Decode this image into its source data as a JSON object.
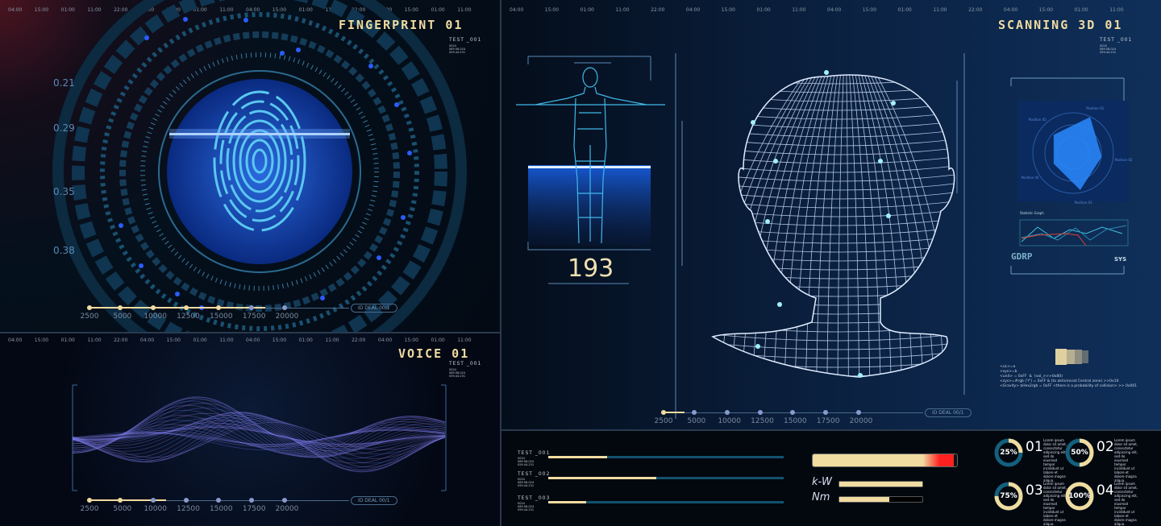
{
  "timeline_labels": [
    "04:00",
    "15:00",
    "01:00",
    "11:00",
    "22:00",
    "04:00",
    "15:00",
    "01:00",
    "11:00",
    "04:00",
    "15:00",
    "01:00",
    "11:00",
    "22:00",
    "04:00",
    "15:00",
    "01:00",
    "11:00"
  ],
  "fingerprint": {
    "title": "FINGERPRINT   01",
    "test_label": "TEST _001",
    "sub_lines": "0024\n089.58.024\n059.44.231",
    "y_labels": [
      "0.21",
      "0.29",
      "0.35",
      "0.38"
    ],
    "slider": {
      "ticks": [
        "2500",
        "5000",
        "10000",
        "12500",
        "15000",
        "17500",
        "20000"
      ],
      "active_ticks": 5,
      "fill": 0.68,
      "pill": "ID DEAL   00/1"
    }
  },
  "voice": {
    "title": "VOICE  01",
    "test_label": "TEST _001",
    "sub_lines": "0024\n089.58.024\n059.44.231",
    "slider": {
      "ticks": [
        "2500",
        "5000",
        "10000",
        "12500",
        "15000",
        "17500",
        "20000"
      ],
      "active_ticks": 2,
      "fill": 0.3,
      "pill": "ID DEAL   00/1"
    }
  },
  "scanning": {
    "title": "SCANNING 3D 01",
    "test_label": "TEST _001",
    "sub_lines": "0024\n089.58.024\n059.44.231",
    "body_count": "193",
    "radar": {
      "labels": [
        "Position 01",
        "Position 02",
        "Position 03",
        "Position 04",
        "Position 05"
      ],
      "values": [
        0.9,
        0.65,
        0.85,
        0.5,
        0.6
      ]
    },
    "stat_graph_label": "Statistic Graph",
    "gdrp": "GDRP",
    "sys": "SYS",
    "code_lines": [
      "<uL>=a",
      "<sys>=b",
      "<unit> = 0xFF  &  (val_>>>0x80)",
      "<sys>=#rgb ('Y') = 0xFF & (to aktivirovat Central zone) >>0x10",
      "<Gravity> $Hex2rgb = 0xFF <there is a probability of collision> >> 0x001"
    ],
    "slider": {
      "ticks": [
        "2500",
        "5000",
        "10000",
        "12500",
        "15000",
        "17500",
        "20000"
      ],
      "active_ticks": 1,
      "fill": 0.09,
      "pill": "ID DEAL   00/1"
    }
  },
  "stats": {
    "tests": [
      {
        "label": "TEST _001",
        "sub": "0024\n089.58.024\n059.44.231",
        "fill": 0.25
      },
      {
        "label": "TEST _002",
        "sub": "0024\n089.58.024\n059.44.231",
        "fill": 0.46
      },
      {
        "label": "TEST _003",
        "sub": "0024\n089.58.024\n059.44.231",
        "fill": 0.16
      }
    ],
    "power_level": 0.98,
    "meters": [
      {
        "label": "k-W",
        "fill": 1.0
      },
      {
        "label": "Nm",
        "fill": 0.6
      }
    ],
    "donuts": [
      {
        "pct": "25%",
        "value": 0.25,
        "num": "01",
        "text": "Lorem ipsum dolor sit amet, consectetur adipiscing elit, sed do eiusmod tempor incididunt ut labore et dolore magna aliqua."
      },
      {
        "pct": "50%",
        "value": 0.5,
        "num": "02",
        "text": "Lorem ipsum dolor sit amet, consectetur adipiscing elit, sed do eiusmod tempor incididunt ut labore et dolore magna aliqua."
      },
      {
        "pct": "75%",
        "value": 0.75,
        "num": "03",
        "text": "Lorem ipsum dolor sit amet, consectetur adipiscing elit, sed do eiusmod tempor incididunt ut labore et dolore magna aliqua."
      },
      {
        "pct": "100%",
        "value": 1.0,
        "num": "04",
        "text": "Lorem ipsum dolor sit amet, consectetur adipiscing elit, sed do eiusmod tempor incididunt ut labore et dolore magna aliqua."
      }
    ]
  },
  "colors": {
    "accent": "#f0dca0",
    "cyan": "#14506e",
    "glow": "#2a6aff",
    "alert": "#ff2020"
  }
}
